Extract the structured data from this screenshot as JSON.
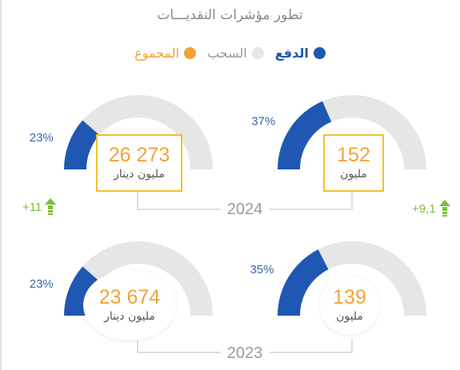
{
  "title": "تطور مؤشرات النقديـــات",
  "legend": {
    "items": [
      {
        "label": "الدفع",
        "color": "#1f57b3"
      },
      {
        "label": "السحب",
        "color": "#e6e6e6"
      },
      {
        "label": "المجموع",
        "color": "#f2a33a"
      }
    ]
  },
  "years": {
    "current": "2024",
    "previous": "2023"
  },
  "growth": {
    "left": "+11",
    "right": "+9,1"
  },
  "chart_data": [
    {
      "type": "gauge",
      "year": "2024",
      "series": [
        {
          "name": "الدفع",
          "value": 37
        },
        {
          "name": "السحب",
          "value": 63
        }
      ],
      "pct_label": "37%",
      "total": "152",
      "unit": "مليون"
    },
    {
      "type": "gauge",
      "year": "2024",
      "series": [
        {
          "name": "الدفع",
          "value": 23
        },
        {
          "name": "السحب",
          "value": 77
        }
      ],
      "pct_label": "23%",
      "total": "26 273",
      "unit": "مليون دينار"
    },
    {
      "type": "gauge",
      "year": "2023",
      "series": [
        {
          "name": "الدفع",
          "value": 35
        },
        {
          "name": "السحب",
          "value": 65
        }
      ],
      "pct_label": "35%",
      "total": "139",
      "unit": "مليون"
    },
    {
      "type": "gauge",
      "year": "2023",
      "series": [
        {
          "name": "الدفع",
          "value": 23
        },
        {
          "name": "السحب",
          "value": 77
        }
      ],
      "pct_label": "23%",
      "total": "23 674",
      "unit": "مليون دينار"
    }
  ]
}
